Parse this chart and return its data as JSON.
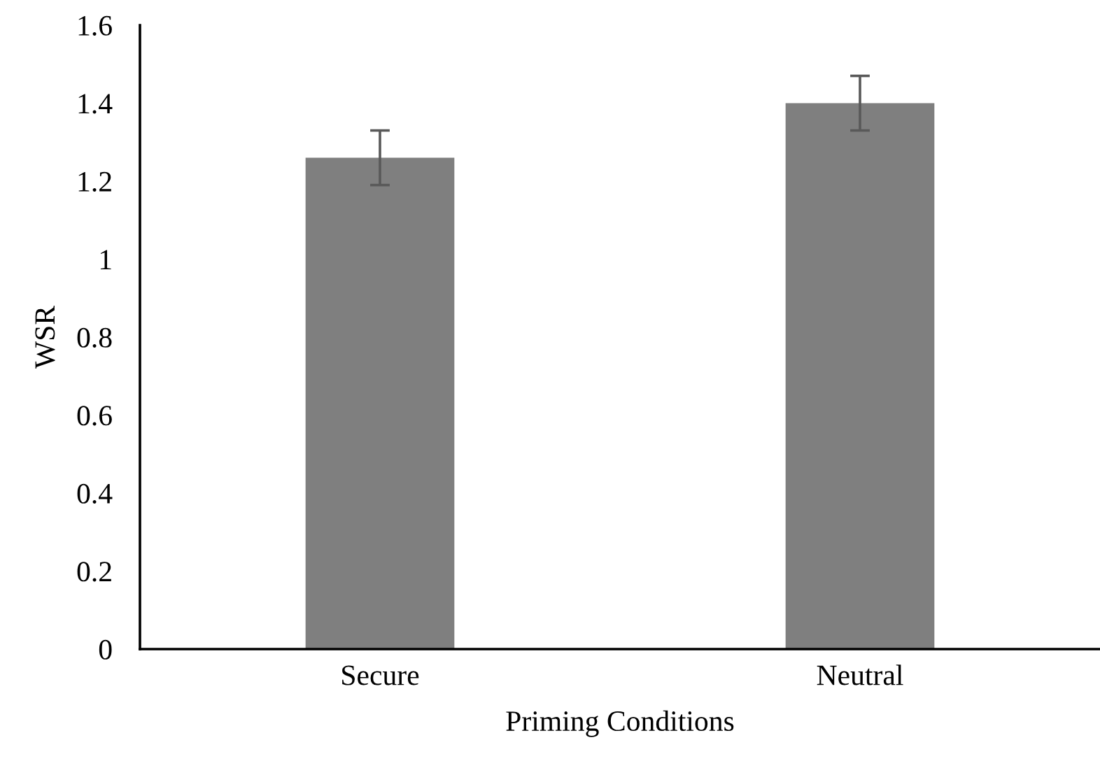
{
  "chart_data": {
    "type": "bar",
    "xlabel": "Priming Conditions",
    "ylabel": "WSR",
    "categories": [
      "Secure",
      "Neutral"
    ],
    "values": [
      1.26,
      1.4
    ],
    "errors": [
      0.07,
      0.07
    ],
    "color": "#7f7f7f",
    "ylim": [
      0,
      1.6
    ],
    "yticks": [
      0,
      0.2,
      0.4,
      0.6,
      0.8,
      1,
      1.2,
      1.4,
      1.6
    ],
    "grid": false,
    "legend": false
  }
}
